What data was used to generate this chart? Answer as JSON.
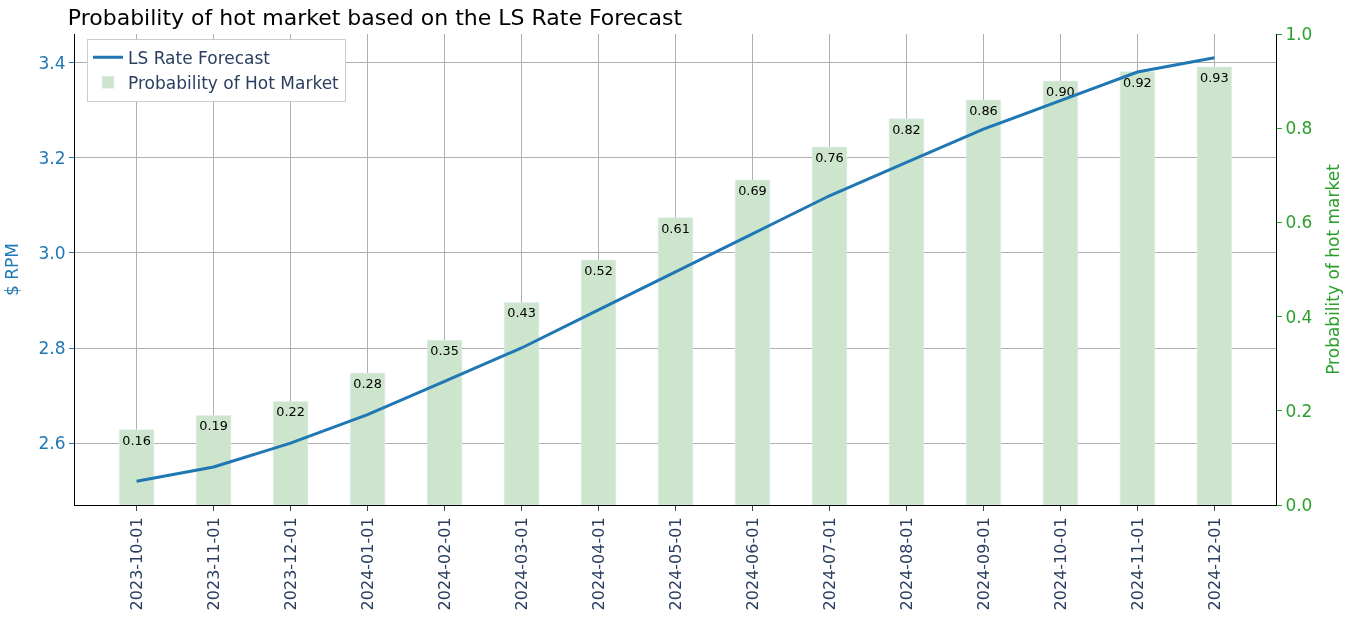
{
  "chart_data": {
    "type": "bar",
    "title": "Probability of hot market based on the LS Rate Forecast",
    "ylabel": "$ RPM",
    "y2label": "Probability of hot market",
    "categories": [
      "2023-10-01",
      "2023-11-01",
      "2023-12-01",
      "2024-01-01",
      "2024-02-01",
      "2024-03-01",
      "2024-04-01",
      "2024-05-01",
      "2024-06-01",
      "2024-07-01",
      "2024-08-01",
      "2024-09-01",
      "2024-10-01",
      "2024-11-01",
      "2024-12-01"
    ],
    "series": [
      {
        "name": "LS Rate Forecast",
        "type": "line",
        "axis": "y",
        "color": "#1f77b4",
        "values": [
          2.52,
          2.55,
          2.6,
          2.66,
          2.73,
          2.8,
          2.88,
          2.96,
          3.04,
          3.12,
          3.19,
          3.26,
          3.32,
          3.38,
          3.41
        ]
      },
      {
        "name": "Probability of Hot Market",
        "axis": "y2",
        "color": "#cce5cc",
        "values": [
          0.16,
          0.19,
          0.22,
          0.28,
          0.35,
          0.43,
          0.52,
          0.61,
          0.69,
          0.76,
          0.82,
          0.86,
          0.9,
          0.92,
          0.93
        ],
        "value_labels": [
          "0.16",
          "0.19",
          "0.22",
          "0.28",
          "0.35",
          "0.43",
          "0.52",
          "0.61",
          "0.69",
          "0.76",
          "0.82",
          "0.86",
          "0.90",
          "0.92",
          "0.93"
        ]
      }
    ],
    "ylim": [
      2.47,
      3.46
    ],
    "yticks": [
      2.6,
      2.8,
      {
        "value": 3,
        "label": "3.0"
      },
      3.2,
      3.4
    ],
    "y2lim": [
      0,
      1
    ],
    "y2ticks": [
      {
        "value": 0,
        "label": "0.0"
      },
      0.2,
      0.4,
      0.6,
      0.8,
      {
        "value": 1,
        "label": "1.0"
      }
    ],
    "grid": true,
    "legend": "top left",
    "marker": "none",
    "line_style": "solid"
  }
}
